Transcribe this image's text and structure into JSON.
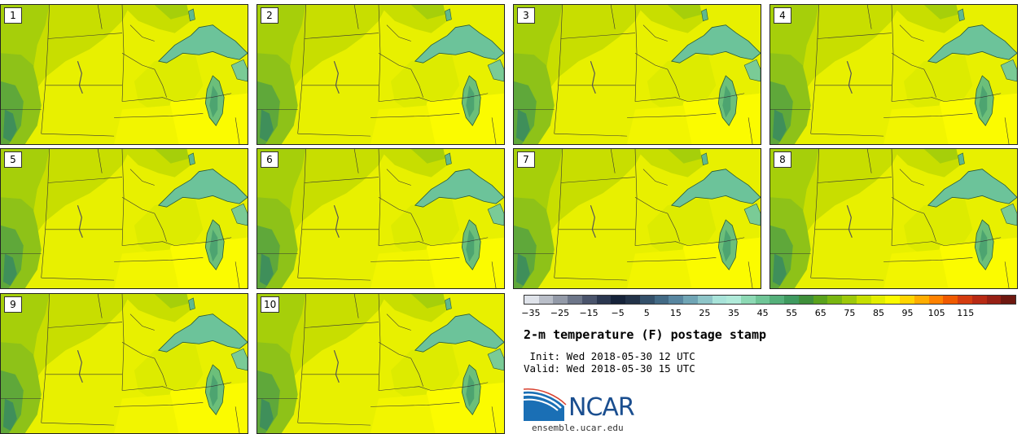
{
  "panels": [
    {
      "label": "1"
    },
    {
      "label": "2"
    },
    {
      "label": "3"
    },
    {
      "label": "4"
    },
    {
      "label": "5"
    },
    {
      "label": "6"
    },
    {
      "label": "7"
    },
    {
      "label": "8"
    },
    {
      "label": "9"
    },
    {
      "label": "10"
    }
  ],
  "colorbar": {
    "ticks": [
      "−35",
      "−25",
      "−15",
      "−5",
      "5",
      "15",
      "25",
      "35",
      "45",
      "55",
      "65",
      "75",
      "85",
      "95",
      "105",
      "115"
    ],
    "colors": [
      "#dfe3ea",
      "#b9bec8",
      "#939aa8",
      "#6d7689",
      "#4a546c",
      "#2b3750",
      "#16233a",
      "#233349",
      "#34506a",
      "#436a85",
      "#5886a0",
      "#70a5b5",
      "#8ec5c8",
      "#a8e3d9",
      "#b0ead9",
      "#8dd9b4",
      "#6fc596",
      "#55b07a",
      "#3f9a5f",
      "#3f8f3a",
      "#5aa21c",
      "#79b611",
      "#9dc90a",
      "#c6df00",
      "#e3ee00",
      "#fbfb00",
      "#ffd500",
      "#ffad00",
      "#ff8200",
      "#f05a00",
      "#d43c10",
      "#b82a14",
      "#972015",
      "#6e1810"
    ]
  },
  "title": "2-m temperature (F) postage stamp",
  "init": " Init: Wed 2018-05-30 12 UTC",
  "valid": "Valid: Wed 2018-05-30 15 UTC",
  "logo_text": "NCAR",
  "site": "ensemble.ucar.edu"
}
